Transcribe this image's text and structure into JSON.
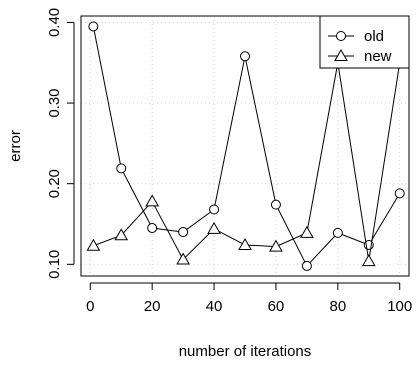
{
  "chart_data": {
    "type": "line",
    "xlabel": "number of iterations",
    "ylabel": "error",
    "xlim": [
      -3,
      103
    ],
    "ylim": [
      0.0855,
      0.408
    ],
    "x_ticks": [
      0,
      20,
      40,
      60,
      80,
      100
    ],
    "x_tick_labels": [
      "0",
      "20",
      "40",
      "60",
      "80",
      "100"
    ],
    "y_ticks": [
      0.1,
      0.2,
      0.3,
      0.4
    ],
    "y_tick_labels": [
      "0.10",
      "0.20",
      "0.30",
      "0.40"
    ],
    "grid": true,
    "legend_position": "top-right",
    "x": [
      1,
      10,
      20,
      30,
      40,
      50,
      60,
      70,
      80,
      90,
      100
    ],
    "series": [
      {
        "name": "old",
        "marker": "circle",
        "values": [
          0.395,
          0.219,
          0.145,
          0.14,
          0.168,
          0.358,
          0.174,
          0.098,
          0.139,
          0.124,
          0.188
        ]
      },
      {
        "name": "new",
        "marker": "triangle",
        "values": [
          0.123,
          0.136,
          0.178,
          0.106,
          0.144,
          0.124,
          0.122,
          0.139,
          0.35,
          0.104,
          0.35
        ]
      }
    ]
  }
}
